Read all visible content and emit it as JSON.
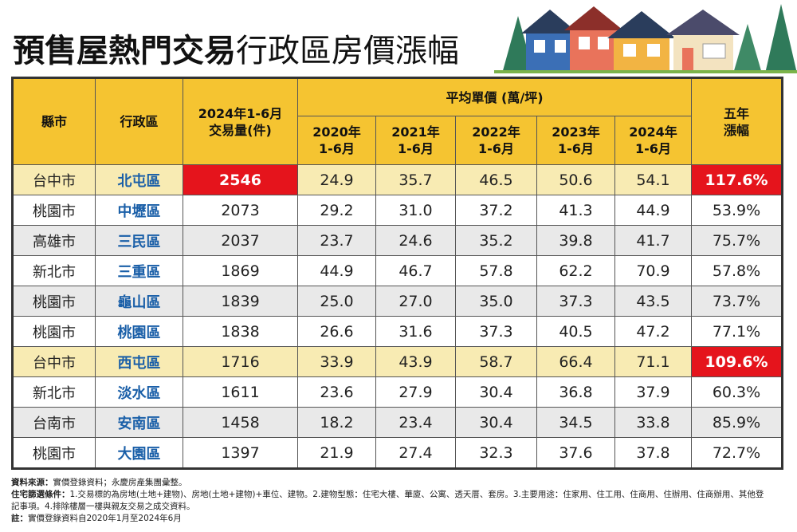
{
  "title": {
    "bold": "預售屋熱門交易",
    "regular": "行政區房價漲幅"
  },
  "table": {
    "header": {
      "city": "縣市",
      "district": "行政區",
      "volume": [
        "2024年1-6月",
        "交易量(件)"
      ],
      "price_group": "平均單價 (萬/坪)",
      "periods": [
        [
          "2020年",
          "1-6月"
        ],
        [
          "2021年",
          "1-6月"
        ],
        [
          "2022年",
          "1-6月"
        ],
        [
          "2023年",
          "1-6月"
        ],
        [
          "2024年",
          "1-6月"
        ]
      ],
      "growth": [
        "五年",
        "漲幅"
      ]
    },
    "rows": [
      [
        "台中市",
        "北屯區",
        "2546",
        "24.9",
        "35.7",
        "46.5",
        "50.6",
        "54.1",
        "117.6%"
      ],
      [
        "桃園市",
        "中壢區",
        "2073",
        "29.2",
        "31.0",
        "37.2",
        "41.3",
        "44.9",
        "53.9%"
      ],
      [
        "高雄市",
        "三民區",
        "2037",
        "23.7",
        "24.6",
        "35.2",
        "39.8",
        "41.7",
        "75.7%"
      ],
      [
        "新北市",
        "三重區",
        "1869",
        "44.9",
        "46.7",
        "57.8",
        "62.2",
        "70.9",
        "57.8%"
      ],
      [
        "桃園市",
        "龜山區",
        "1839",
        "25.0",
        "27.0",
        "35.0",
        "37.3",
        "43.5",
        "73.7%"
      ],
      [
        "桃園市",
        "桃園區",
        "1838",
        "26.6",
        "31.6",
        "37.3",
        "40.5",
        "47.2",
        "77.1%"
      ],
      [
        "台中市",
        "西屯區",
        "1716",
        "33.9",
        "43.9",
        "58.7",
        "66.4",
        "71.1",
        "109.6%"
      ],
      [
        "新北市",
        "淡水區",
        "1611",
        "23.6",
        "27.9",
        "30.4",
        "36.8",
        "37.9",
        "60.3%"
      ],
      [
        "台南市",
        "安南區",
        "1458",
        "18.2",
        "23.4",
        "30.4",
        "34.5",
        "33.8",
        "85.9%"
      ],
      [
        "桃園市",
        "大園區",
        "1397",
        "21.9",
        "27.4",
        "32.3",
        "37.6",
        "37.8",
        "72.7%"
      ]
    ]
  },
  "notes": [
    {
      "label": "資料來源：",
      "text": "實價登錄資料；永慶房產集團彙整。"
    },
    {
      "label": "住宅篩選條件：",
      "text": "1.交易標的為房地(土地+建物)、房地(土地+建物)+車位、建物。2.建物型態：住宅大樓、華廈、公寓、透天厝、套房。3.主要用途：住家用、住工用、住商用、住辦用、住商辦用、其他登記事項。4.排除樓層一樓與親友交易之成交資料。"
    },
    {
      "label": "註：",
      "text": "實價登錄資料自2020年1月至2024年6月"
    }
  ]
}
